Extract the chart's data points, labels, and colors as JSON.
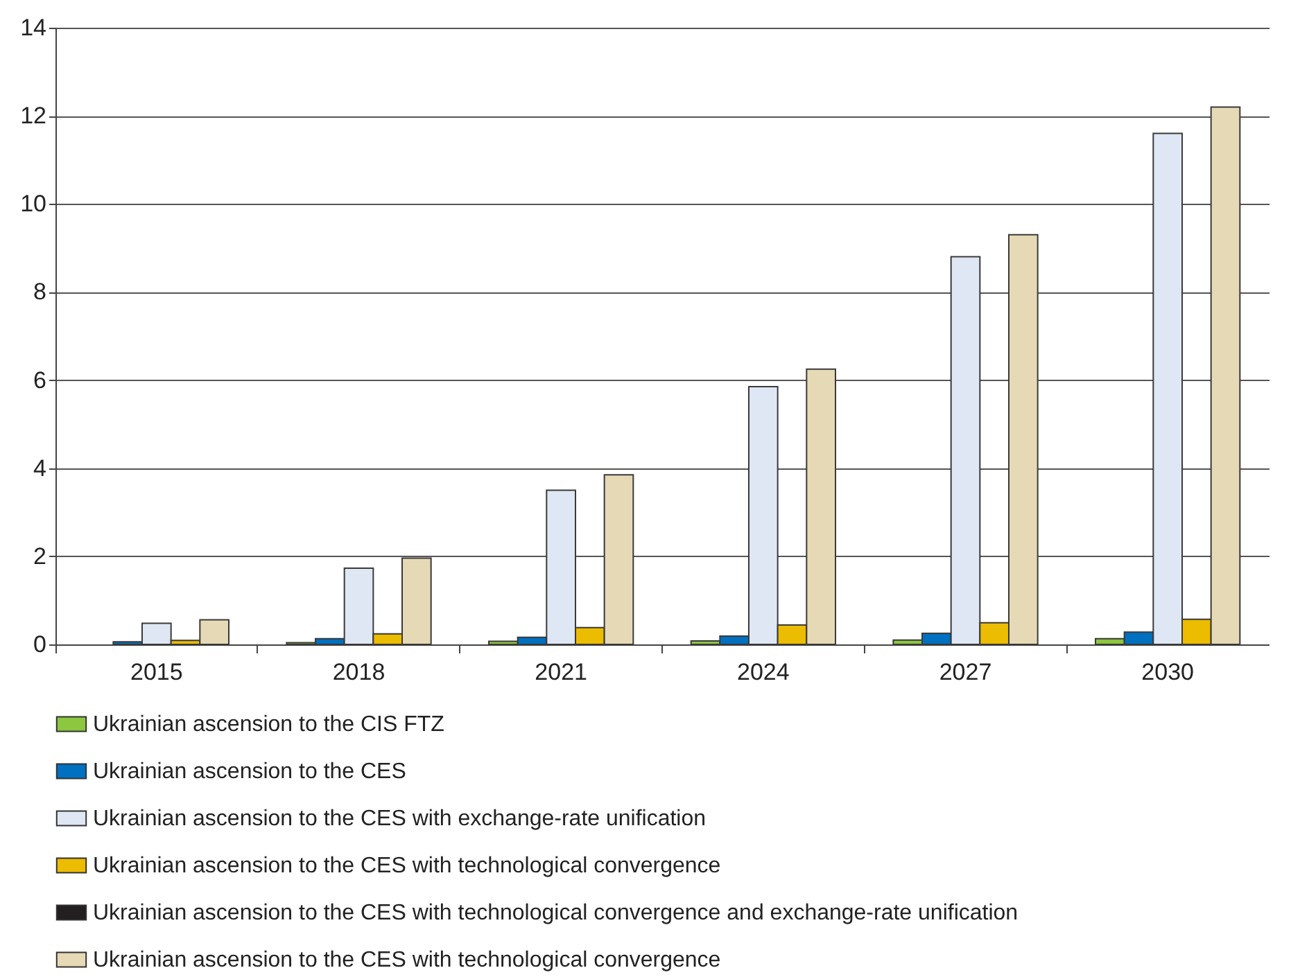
{
  "chart_data": {
    "type": "bar",
    "categories": [
      "2015",
      "2018",
      "2021",
      "2024",
      "2027",
      "2030"
    ],
    "series": [
      {
        "name": "Ukrainian ascension to the CIS FTZ",
        "color": "#8dc63f",
        "values": [
          null,
          0.04,
          0.07,
          0.08,
          0.1,
          0.13
        ]
      },
      {
        "name": "Ukrainian ascension to the CES",
        "color": "#0070c0",
        "values": [
          0.06,
          0.13,
          0.16,
          0.19,
          0.25,
          0.28
        ]
      },
      {
        "name": "Ukrainian ascension to the CES with exchange-rate unification",
        "color": "#dfe7f4",
        "values": [
          0.48,
          1.73,
          3.5,
          5.85,
          8.8,
          11.6
        ]
      },
      {
        "name": "Ukrainian ascension to the CES with technological convergence",
        "color": "#ebbc00",
        "values": [
          0.09,
          0.24,
          0.38,
          0.44,
          0.49,
          0.57
        ]
      },
      {
        "name": "Ukrainian ascension to the CES with technological convergence and exchange-rate unification",
        "color": "#231f20",
        "values": [
          null,
          null,
          null,
          null,
          null,
          null
        ]
      },
      {
        "name": "Ukrainian ascension to the CES with technological convergence",
        "color": "#e6d9b5",
        "values": [
          0.56,
          1.96,
          3.85,
          6.25,
          9.3,
          12.2
        ]
      }
    ],
    "ylim": [
      0,
      14
    ],
    "yticks": [
      0,
      2,
      4,
      6,
      8,
      10,
      12,
      14
    ],
    "grid": "y",
    "legend": "bottom"
  }
}
